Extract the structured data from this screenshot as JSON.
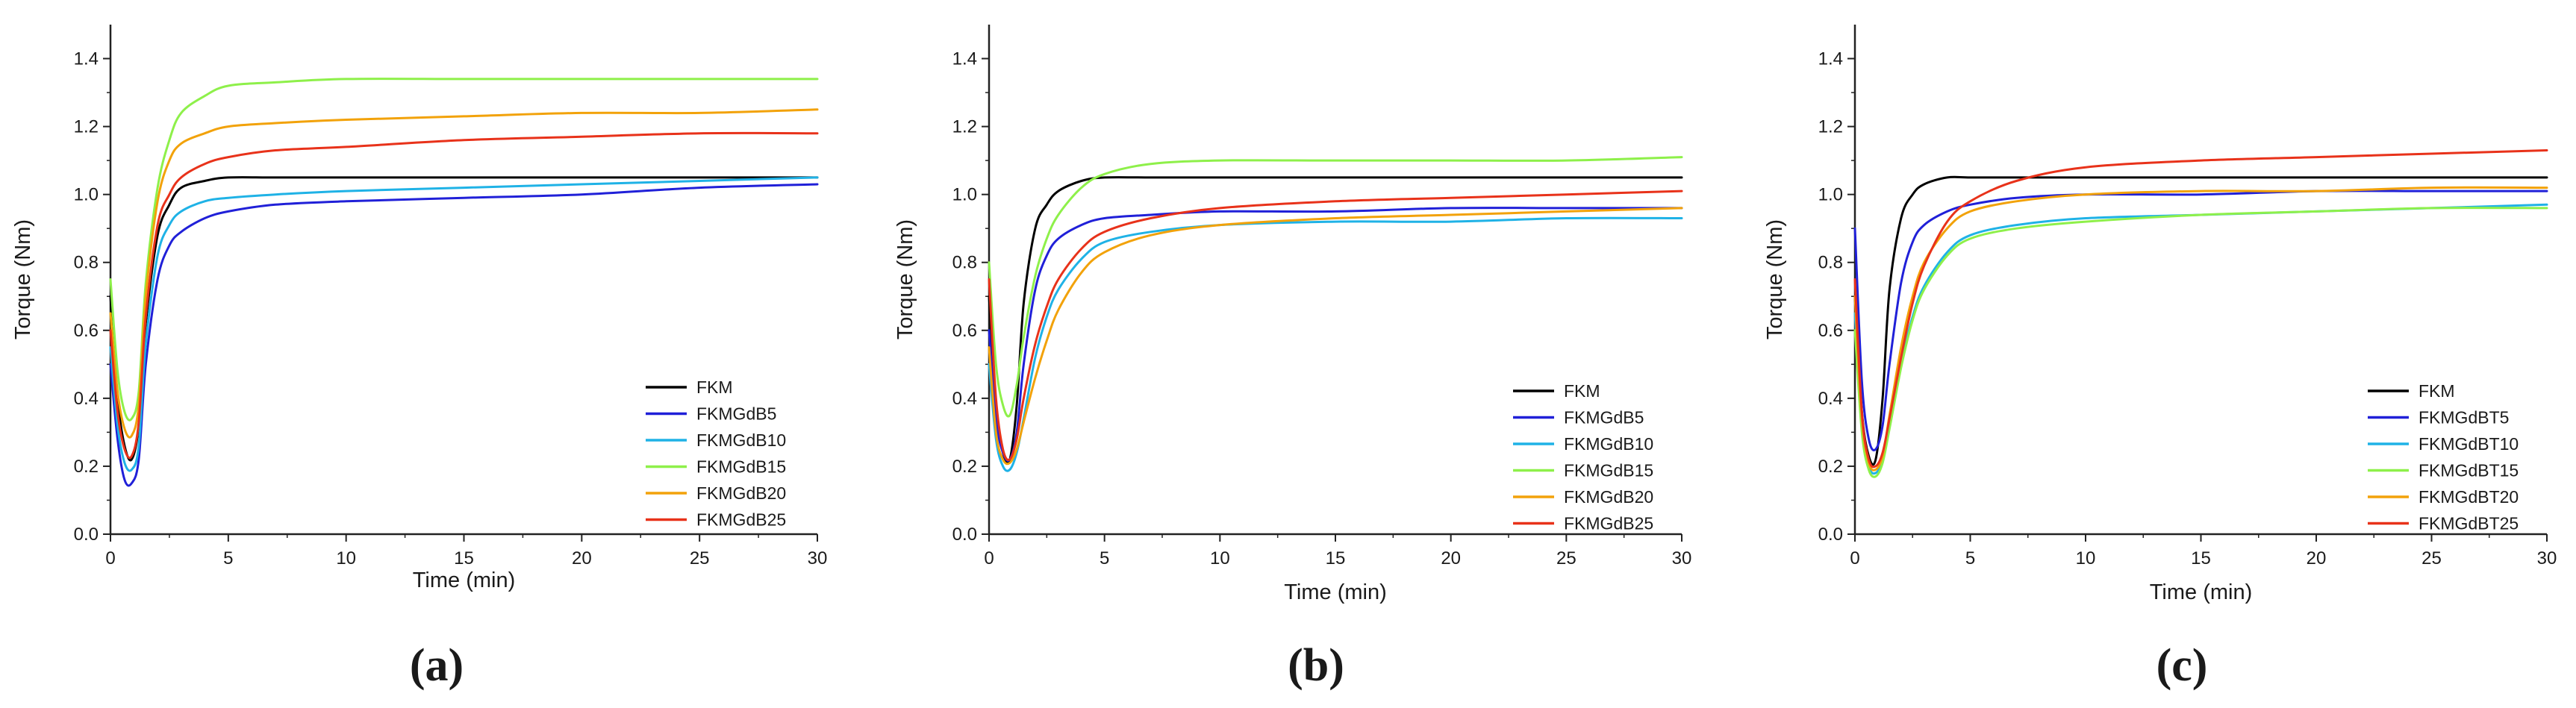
{
  "figure": {
    "panel_labels": [
      "(a)",
      "(b)",
      "(c)"
    ]
  },
  "chart_data": [
    {
      "type": "line",
      "panel": "(a)",
      "title": "",
      "xlabel": "Time (min)",
      "ylabel": "Torque (Nm)",
      "xlim": [
        0,
        30
      ],
      "ylim": [
        0,
        1.5
      ],
      "xticks": [
        0,
        5,
        10,
        15,
        20,
        25,
        30
      ],
      "yticks": [
        0.0,
        0.2,
        0.4,
        0.6,
        0.8,
        1.0,
        1.2,
        1.4
      ],
      "grid": false,
      "legend_position": "bottom-right",
      "series": [
        {
          "name": "FKM",
          "color": "#000000",
          "x": [
            0,
            0.3,
            0.6,
            0.9,
            1.2,
            1.5,
            2,
            2.5,
            3,
            4,
            5,
            7,
            10,
            15,
            20,
            25,
            30
          ],
          "y": [
            0.7,
            0.4,
            0.26,
            0.22,
            0.32,
            0.62,
            0.88,
            0.97,
            1.02,
            1.04,
            1.05,
            1.05,
            1.05,
            1.05,
            1.05,
            1.05,
            1.05
          ]
        },
        {
          "name": "FKMGdB5",
          "color": "#2020d8",
          "x": [
            0,
            0.3,
            0.6,
            0.9,
            1.2,
            1.5,
            2,
            2.5,
            3,
            4,
            5,
            7,
            10,
            15,
            20,
            25,
            30
          ],
          "y": [
            0.5,
            0.28,
            0.16,
            0.15,
            0.22,
            0.5,
            0.75,
            0.85,
            0.89,
            0.93,
            0.95,
            0.97,
            0.98,
            0.99,
            1.0,
            1.02,
            1.03
          ]
        },
        {
          "name": "FKMGdB10",
          "color": "#1fb2e6",
          "x": [
            0,
            0.3,
            0.6,
            0.9,
            1.2,
            1.5,
            2,
            2.5,
            3,
            4,
            5,
            7,
            10,
            15,
            20,
            25,
            30
          ],
          "y": [
            0.55,
            0.32,
            0.21,
            0.19,
            0.26,
            0.56,
            0.82,
            0.91,
            0.95,
            0.98,
            0.99,
            1.0,
            1.01,
            1.02,
            1.03,
            1.04,
            1.05
          ]
        },
        {
          "name": "FKMGdB15",
          "color": "#8ef04a",
          "x": [
            0,
            0.3,
            0.6,
            0.9,
            1.2,
            1.5,
            2,
            2.5,
            3,
            4,
            5,
            7,
            10,
            15,
            20,
            25,
            30
          ],
          "y": [
            0.75,
            0.48,
            0.36,
            0.34,
            0.42,
            0.74,
            1.02,
            1.16,
            1.24,
            1.29,
            1.32,
            1.33,
            1.34,
            1.34,
            1.34,
            1.34,
            1.34
          ]
        },
        {
          "name": "FKMGdB20",
          "color": "#f2a20a",
          "x": [
            0,
            0.3,
            0.6,
            0.9,
            1.2,
            1.5,
            2,
            2.5,
            3,
            4,
            5,
            7,
            10,
            15,
            20,
            25,
            30
          ],
          "y": [
            0.65,
            0.42,
            0.31,
            0.29,
            0.38,
            0.7,
            0.98,
            1.1,
            1.15,
            1.18,
            1.2,
            1.21,
            1.22,
            1.23,
            1.24,
            1.24,
            1.25
          ]
        },
        {
          "name": "FKMGdB25",
          "color": "#e8321a",
          "x": [
            0,
            0.3,
            0.6,
            0.9,
            1.2,
            1.5,
            2,
            2.5,
            3,
            4,
            5,
            7,
            10,
            15,
            20,
            25,
            30
          ],
          "y": [
            0.6,
            0.36,
            0.25,
            0.23,
            0.33,
            0.64,
            0.91,
            1.0,
            1.05,
            1.09,
            1.11,
            1.13,
            1.14,
            1.16,
            1.17,
            1.18,
            1.18
          ]
        }
      ]
    },
    {
      "type": "line",
      "panel": "(b)",
      "title": "",
      "xlabel": "Time (min)",
      "ylabel": "Torque (Nm)",
      "xlim": [
        0,
        30
      ],
      "ylim": [
        0,
        1.5
      ],
      "xticks": [
        0,
        5,
        10,
        15,
        20,
        25,
        30
      ],
      "yticks": [
        0.0,
        0.2,
        0.4,
        0.6,
        0.8,
        1.0,
        1.2,
        1.4
      ],
      "grid": false,
      "legend_position": "bottom-right",
      "series": [
        {
          "name": "FKM",
          "color": "#000000",
          "x": [
            0,
            0.3,
            0.6,
            0.9,
            1.2,
            1.5,
            2,
            2.5,
            3,
            4,
            5,
            7,
            10,
            15,
            20,
            25,
            30
          ],
          "y": [
            0.7,
            0.38,
            0.24,
            0.22,
            0.38,
            0.68,
            0.9,
            0.97,
            1.01,
            1.04,
            1.05,
            1.05,
            1.05,
            1.05,
            1.05,
            1.05,
            1.05
          ]
        },
        {
          "name": "FKMGdB5",
          "color": "#2020d8",
          "x": [
            0,
            0.3,
            0.6,
            0.9,
            1.2,
            1.5,
            2,
            2.5,
            3,
            4,
            5,
            7,
            10,
            15,
            20,
            25,
            30
          ],
          "y": [
            0.6,
            0.34,
            0.24,
            0.22,
            0.3,
            0.5,
            0.72,
            0.82,
            0.87,
            0.91,
            0.93,
            0.94,
            0.95,
            0.95,
            0.96,
            0.96,
            0.96
          ]
        },
        {
          "name": "FKMGdB10",
          "color": "#1fb2e6",
          "x": [
            0,
            0.3,
            0.6,
            0.9,
            1.2,
            1.5,
            2,
            2.5,
            3,
            4,
            5,
            7,
            10,
            15,
            20,
            25,
            30
          ],
          "y": [
            0.5,
            0.28,
            0.2,
            0.19,
            0.24,
            0.34,
            0.52,
            0.64,
            0.72,
            0.81,
            0.86,
            0.89,
            0.91,
            0.92,
            0.92,
            0.93,
            0.93
          ]
        },
        {
          "name": "FKMGdB15",
          "color": "#8ef04a",
          "x": [
            0,
            0.3,
            0.6,
            0.9,
            1.2,
            1.5,
            2,
            2.5,
            3,
            4,
            5,
            7,
            10,
            15,
            20,
            25,
            30
          ],
          "y": [
            0.8,
            0.5,
            0.38,
            0.35,
            0.44,
            0.58,
            0.76,
            0.87,
            0.94,
            1.02,
            1.06,
            1.09,
            1.1,
            1.1,
            1.1,
            1.1,
            1.11
          ]
        },
        {
          "name": "FKMGdB20",
          "color": "#f2a20a",
          "x": [
            0,
            0.3,
            0.6,
            0.9,
            1.2,
            1.5,
            2,
            2.5,
            3,
            4,
            5,
            7,
            10,
            15,
            20,
            25,
            30
          ],
          "y": [
            0.55,
            0.3,
            0.22,
            0.21,
            0.25,
            0.33,
            0.46,
            0.57,
            0.66,
            0.77,
            0.83,
            0.88,
            0.91,
            0.93,
            0.94,
            0.95,
            0.96
          ]
        },
        {
          "name": "FKMGdB25",
          "color": "#e8321a",
          "x": [
            0,
            0.3,
            0.6,
            0.9,
            1.2,
            1.5,
            2,
            2.5,
            3,
            4,
            5,
            7,
            10,
            15,
            20,
            25,
            30
          ],
          "y": [
            0.75,
            0.4,
            0.25,
            0.22,
            0.28,
            0.4,
            0.56,
            0.67,
            0.75,
            0.84,
            0.89,
            0.93,
            0.96,
            0.98,
            0.99,
            1.0,
            1.01
          ]
        }
      ]
    },
    {
      "type": "line",
      "panel": "(c)",
      "title": "",
      "xlabel": "Time (min)",
      "ylabel": "Torque (Nm)",
      "xlim": [
        0,
        30
      ],
      "ylim": [
        0,
        1.5
      ],
      "xticks": [
        0,
        5,
        10,
        15,
        20,
        25,
        30
      ],
      "yticks": [
        0.0,
        0.2,
        0.4,
        0.6,
        0.8,
        1.0,
        1.2,
        1.4
      ],
      "grid": false,
      "legend_position": "bottom-right",
      "series": [
        {
          "name": "FKM",
          "color": "#000000",
          "x": [
            0,
            0.3,
            0.6,
            0.9,
            1.2,
            1.5,
            2,
            2.5,
            3,
            4,
            5,
            7,
            10,
            15,
            20,
            25,
            30
          ],
          "y": [
            0.7,
            0.36,
            0.23,
            0.22,
            0.4,
            0.72,
            0.93,
            1.0,
            1.03,
            1.05,
            1.05,
            1.05,
            1.05,
            1.05,
            1.05,
            1.05,
            1.05
          ]
        },
        {
          "name": "FKMGdBT5",
          "color": "#2020d8",
          "x": [
            0,
            0.3,
            0.6,
            0.9,
            1.2,
            1.5,
            2,
            2.5,
            3,
            4,
            5,
            7,
            10,
            15,
            20,
            25,
            30
          ],
          "y": [
            0.9,
            0.45,
            0.28,
            0.25,
            0.32,
            0.5,
            0.74,
            0.86,
            0.91,
            0.95,
            0.97,
            0.99,
            1.0,
            1.0,
            1.01,
            1.01,
            1.01
          ]
        },
        {
          "name": "FKMGdBT10",
          "color": "#1fb2e6",
          "x": [
            0,
            0.3,
            0.6,
            0.9,
            1.2,
            1.5,
            2,
            2.5,
            3,
            4,
            5,
            7,
            10,
            15,
            20,
            25,
            30
          ],
          "y": [
            0.65,
            0.32,
            0.2,
            0.18,
            0.22,
            0.32,
            0.5,
            0.64,
            0.73,
            0.83,
            0.88,
            0.91,
            0.93,
            0.94,
            0.95,
            0.96,
            0.97
          ]
        },
        {
          "name": "FKMGdBT15",
          "color": "#8ef04a",
          "x": [
            0,
            0.3,
            0.6,
            0.9,
            1.2,
            1.5,
            2,
            2.5,
            3,
            4,
            5,
            7,
            10,
            15,
            20,
            25,
            30
          ],
          "y": [
            0.6,
            0.3,
            0.19,
            0.17,
            0.21,
            0.31,
            0.49,
            0.63,
            0.72,
            0.82,
            0.87,
            0.9,
            0.92,
            0.94,
            0.95,
            0.96,
            0.96
          ]
        },
        {
          "name": "FKMGdBT20",
          "color": "#f2a20a",
          "x": [
            0,
            0.3,
            0.6,
            0.9,
            1.2,
            1.5,
            2,
            2.5,
            3,
            4,
            5,
            7,
            10,
            15,
            20,
            25,
            30
          ],
          "y": [
            0.7,
            0.34,
            0.21,
            0.19,
            0.23,
            0.35,
            0.55,
            0.7,
            0.8,
            0.9,
            0.95,
            0.98,
            1.0,
            1.01,
            1.01,
            1.02,
            1.02
          ]
        },
        {
          "name": "FKMGdBT25",
          "color": "#e8321a",
          "x": [
            0,
            0.3,
            0.6,
            0.9,
            1.2,
            1.5,
            2,
            2.5,
            3,
            4,
            5,
            7,
            10,
            15,
            20,
            25,
            30
          ],
          "y": [
            0.75,
            0.36,
            0.22,
            0.2,
            0.24,
            0.34,
            0.52,
            0.68,
            0.79,
            0.92,
            0.98,
            1.04,
            1.08,
            1.1,
            1.11,
            1.12,
            1.13
          ]
        }
      ]
    }
  ]
}
